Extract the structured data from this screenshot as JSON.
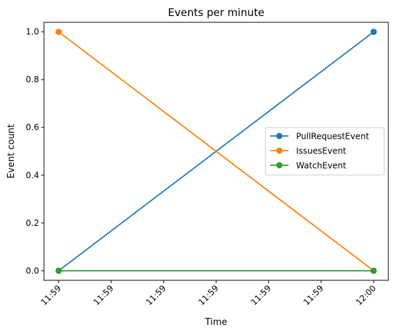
{
  "chart_data": {
    "type": "line",
    "title": "Events per minute",
    "xlabel": "Time",
    "ylabel": "Event count",
    "x_tick_labels": [
      "11:59",
      "11:59",
      "11:59",
      "11:59",
      "11:59",
      "11:59",
      "12:00"
    ],
    "x_points": [
      "11:59",
      "12:00"
    ],
    "ylim": [
      -0.04,
      1.04
    ],
    "y_ticks": [
      "0.0",
      "0.2",
      "0.4",
      "0.6",
      "0.8",
      "1.0"
    ],
    "y_tick_values": [
      0.0,
      0.2,
      0.4,
      0.6,
      0.8,
      1.0
    ],
    "grid": false,
    "legend_position": "center-right",
    "series": [
      {
        "name": "PullRequestEvent",
        "values": [
          0,
          1
        ],
        "color": "#1f77b4"
      },
      {
        "name": "IssuesEvent",
        "values": [
          1,
          0
        ],
        "color": "#ff7f0e"
      },
      {
        "name": "WatchEvent",
        "values": [
          0,
          0
        ],
        "color": "#2ca02c"
      }
    ]
  }
}
